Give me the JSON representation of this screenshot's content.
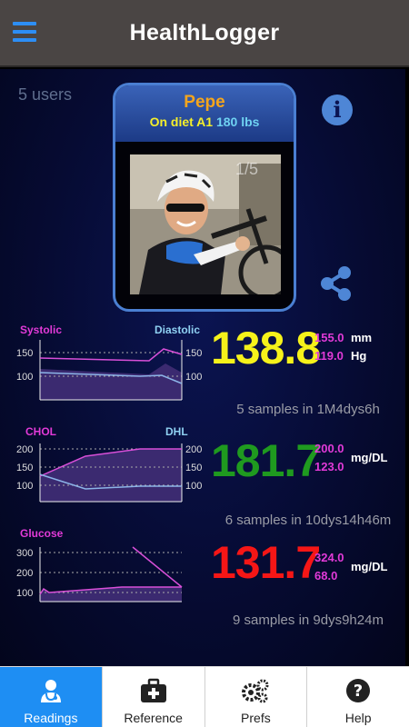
{
  "header": {
    "title": "HealthLogger",
    "menu_icon": "hamburger-menu-icon"
  },
  "users_count": "5 users",
  "profile": {
    "name": "Pepe",
    "diet": "On diet A1",
    "weight": "180 lbs",
    "photo_counter": "1/5"
  },
  "readings": {
    "bp": {
      "label_left": "Systolic",
      "label_right": "Diastolic",
      "ticks": [
        "150",
        "100"
      ],
      "value": "138.8",
      "max": "155.0",
      "min": "119.0",
      "unit_top": "mm",
      "unit_bottom": "Hg",
      "samples": "5 samples in 1M4dys6h",
      "color": "#f6f21a"
    },
    "chol": {
      "label_left": "CHOL",
      "label_right": "DHL",
      "ticks": [
        "200",
        "150",
        "100"
      ],
      "value": "181.7",
      "max": "200.0",
      "min": "123.0",
      "unit": "mg/DL",
      "samples": "6 samples in 10dys14h46m",
      "color": "#1f9a1f"
    },
    "glucose": {
      "label_left": "Glucose",
      "ticks": [
        "300",
        "200",
        "100"
      ],
      "value": "131.7",
      "max": "324.0",
      "min": "68.0",
      "unit": "mg/DL",
      "samples": "9 samples in 9dys9h24m",
      "color": "#f51616"
    }
  },
  "nav": {
    "items": [
      {
        "label": "Readings",
        "icon": "doctor-icon",
        "active": true
      },
      {
        "label": "Reference",
        "icon": "first-aid-kit-icon",
        "active": false
      },
      {
        "label": "Prefs",
        "icon": "gears-icon",
        "active": false
      },
      {
        "label": "Help",
        "icon": "help-icon",
        "active": false
      }
    ]
  },
  "colors": {
    "accent": "#1e8ef3",
    "systolic_line": "#d84fd8",
    "diastolic_line": "#8cb4e8",
    "label_magenta": "#e23ad8",
    "label_blue": "#8fd0f2"
  }
}
